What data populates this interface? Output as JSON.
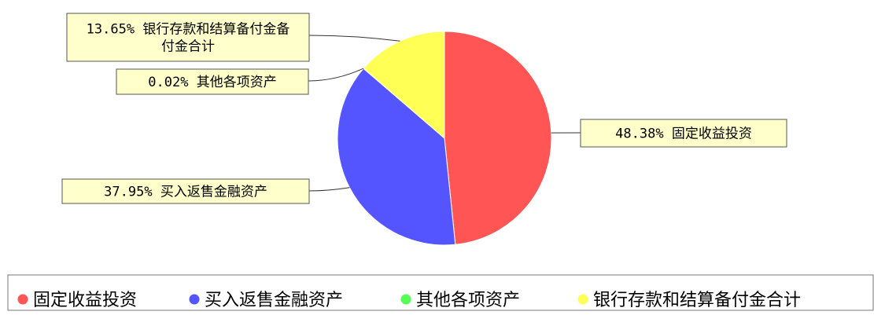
{
  "chart_data": {
    "type": "pie",
    "categories": [
      "固定收益投资",
      "买入返售金融资产",
      "其他各项资产",
      "银行存款和结算备付金合计"
    ],
    "values": [
      48.38,
      37.95,
      0.02,
      13.65
    ],
    "labels": [
      [
        "48.38% 固定收益投资"
      ],
      [
        "37.95% 买入返售金融资产"
      ],
      [
        "0.02% 其他各项资产"
      ],
      [
        "13.65% 银行存款和结算备付金备",
        "付金合计"
      ]
    ],
    "colors": [
      "#ff5555",
      "#5555ff",
      "#55ff55",
      "#ffff55"
    ],
    "legend": {
      "placement": "bottom",
      "items": [
        "固定收益投资",
        "买入返售金融资产",
        "其他各项资产",
        "银行存款和结算备付金合计"
      ]
    }
  }
}
